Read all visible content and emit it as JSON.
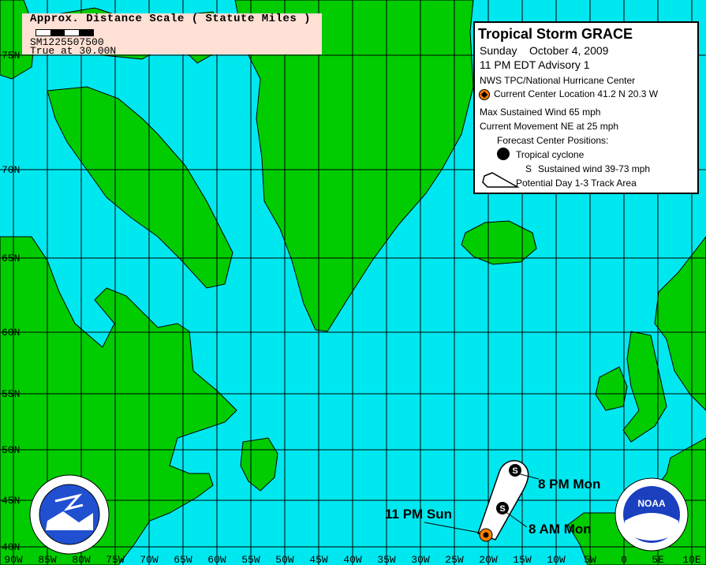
{
  "scale": {
    "title": "Approx. Distance Scale ( Statute Miles )",
    "numbers": "SM 1 250 500 750",
    "numbers_display": "SM1225507500",
    "true_at": "True at 30.00N"
  },
  "legend": {
    "title": "Tropical Storm GRACE",
    "date": "Sunday    October 4, 2009",
    "advisory": "11 PM EDT Advisory 1",
    "agency": "NWS TPC/National Hurricane Center",
    "current_location": "Current Center Location 41.2 N  20.3 W",
    "max_wind": "Max Sustained Wind  65 mph",
    "movement": "Current Movement NE at  25 mph",
    "forecast_header": "Forecast Center Positions:",
    "tropical_cyclone": "Tropical cyclone",
    "s_symbol": "S",
    "sustained_wind": "Sustained wind 39-73 mph",
    "track_area": "Potential Day 1-3 Track Area"
  },
  "track": {
    "points": [
      {
        "label": "11 PM Sun",
        "lat": 41.2,
        "lon": -20.3,
        "type": "current"
      },
      {
        "label": "8 AM Mon",
        "symbol": "S"
      },
      {
        "label": "8 PM Mon",
        "symbol": "S"
      }
    ]
  },
  "grid": {
    "lon_labels": [
      "90W",
      "85W",
      "80W",
      "75W",
      "70W",
      "65W",
      "60W",
      "55W",
      "50W",
      "45W",
      "40W",
      "35W",
      "30W",
      "25W",
      "20W",
      "15W",
      "10W",
      "5W",
      "0",
      "5E",
      "10E"
    ],
    "lat_labels": [
      "75N",
      "70N",
      "65N",
      "60N",
      "55N",
      "50N",
      "45N",
      "40N"
    ]
  },
  "colors": {
    "ocean": "#00e8ef",
    "land": "#00cc00",
    "current": "#ff7f00",
    "cone": "#ffffff",
    "scale_bg": "#ffe0d4"
  },
  "logos": {
    "nws": "NATIONAL WEATHER SERVICE",
    "noaa": "NOAA"
  }
}
